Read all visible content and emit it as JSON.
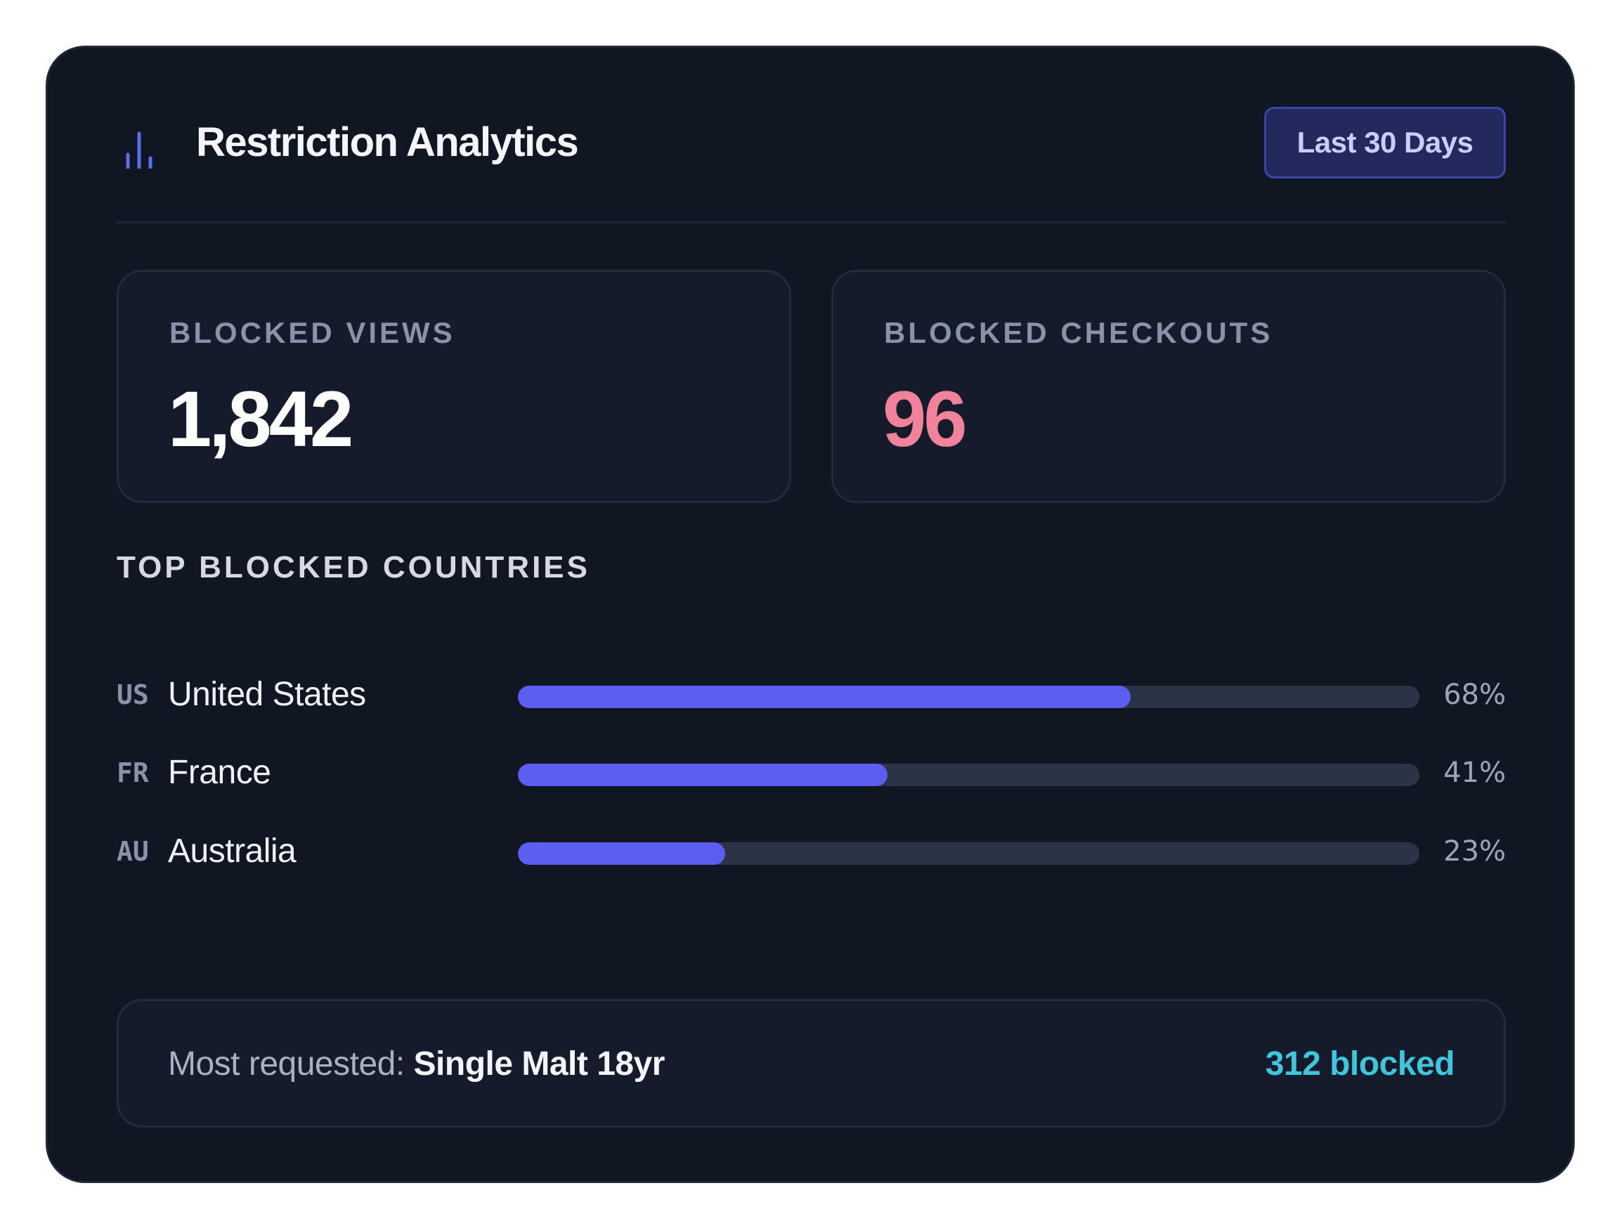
{
  "header": {
    "title": "Restriction Analytics",
    "icon": "bar-chart-icon",
    "range_label": "Last 30 Days"
  },
  "stats": {
    "blocked_views": {
      "label": "BLOCKED VIEWS",
      "value": "1,842"
    },
    "blocked_checkouts": {
      "label": "BLOCKED CHECKOUTS",
      "value": "96"
    }
  },
  "countries": {
    "title": "TOP BLOCKED COUNTRIES",
    "items": [
      {
        "code": "US",
        "name": "United States",
        "pct_label": "68%",
        "pct": 68
      },
      {
        "code": "FR",
        "name": "France",
        "pct_label": "41%",
        "pct": 41
      },
      {
        "code": "AU",
        "name": "Australia",
        "pct_label": "23%",
        "pct": 23
      }
    ]
  },
  "footer": {
    "label": "Most requested:",
    "product": "Single Malt 18yr",
    "blocked": "312 blocked"
  },
  "colors": {
    "card_bg": "#111623",
    "accent": "#5b5ef0",
    "checkouts_value": "#f0839b",
    "blocked_count": "#3ec6dd"
  }
}
